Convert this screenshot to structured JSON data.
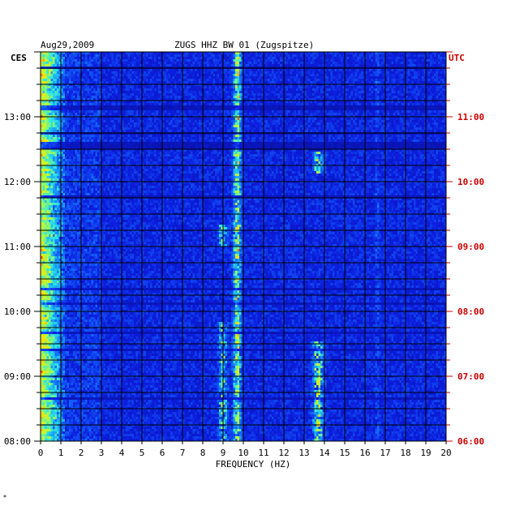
{
  "chart_data": {
    "type": "heatmap",
    "title": "ZUGS HHZ BW 01 (Zugspitze)",
    "date": "Aug29,2009",
    "xlabel": "FREQUENCY (HZ)",
    "xlim": [
      0,
      20
    ],
    "x_ticks": [
      "0",
      "1",
      "2",
      "3",
      "4",
      "5",
      "6",
      "7",
      "8",
      "9",
      "10",
      "11",
      "12",
      "13",
      "14",
      "15",
      "16",
      "17",
      "18",
      "19",
      "20"
    ],
    "left_axis_label": "CES",
    "right_axis_label": "UTC",
    "left_time_ticks": [
      "08:00",
      "09:00",
      "10:00",
      "11:00",
      "12:00",
      "13:00"
    ],
    "right_time_ticks": [
      "06:00",
      "07:00",
      "08:00",
      "09:00",
      "10:00",
      "11:00"
    ],
    "ylim_hours": [
      8,
      14
    ],
    "colors": {
      "background_low": "#0a14b4",
      "high": "#ff1400",
      "right_axis": "#cc0000",
      "grid": "#000000"
    },
    "footnote": "*"
  }
}
